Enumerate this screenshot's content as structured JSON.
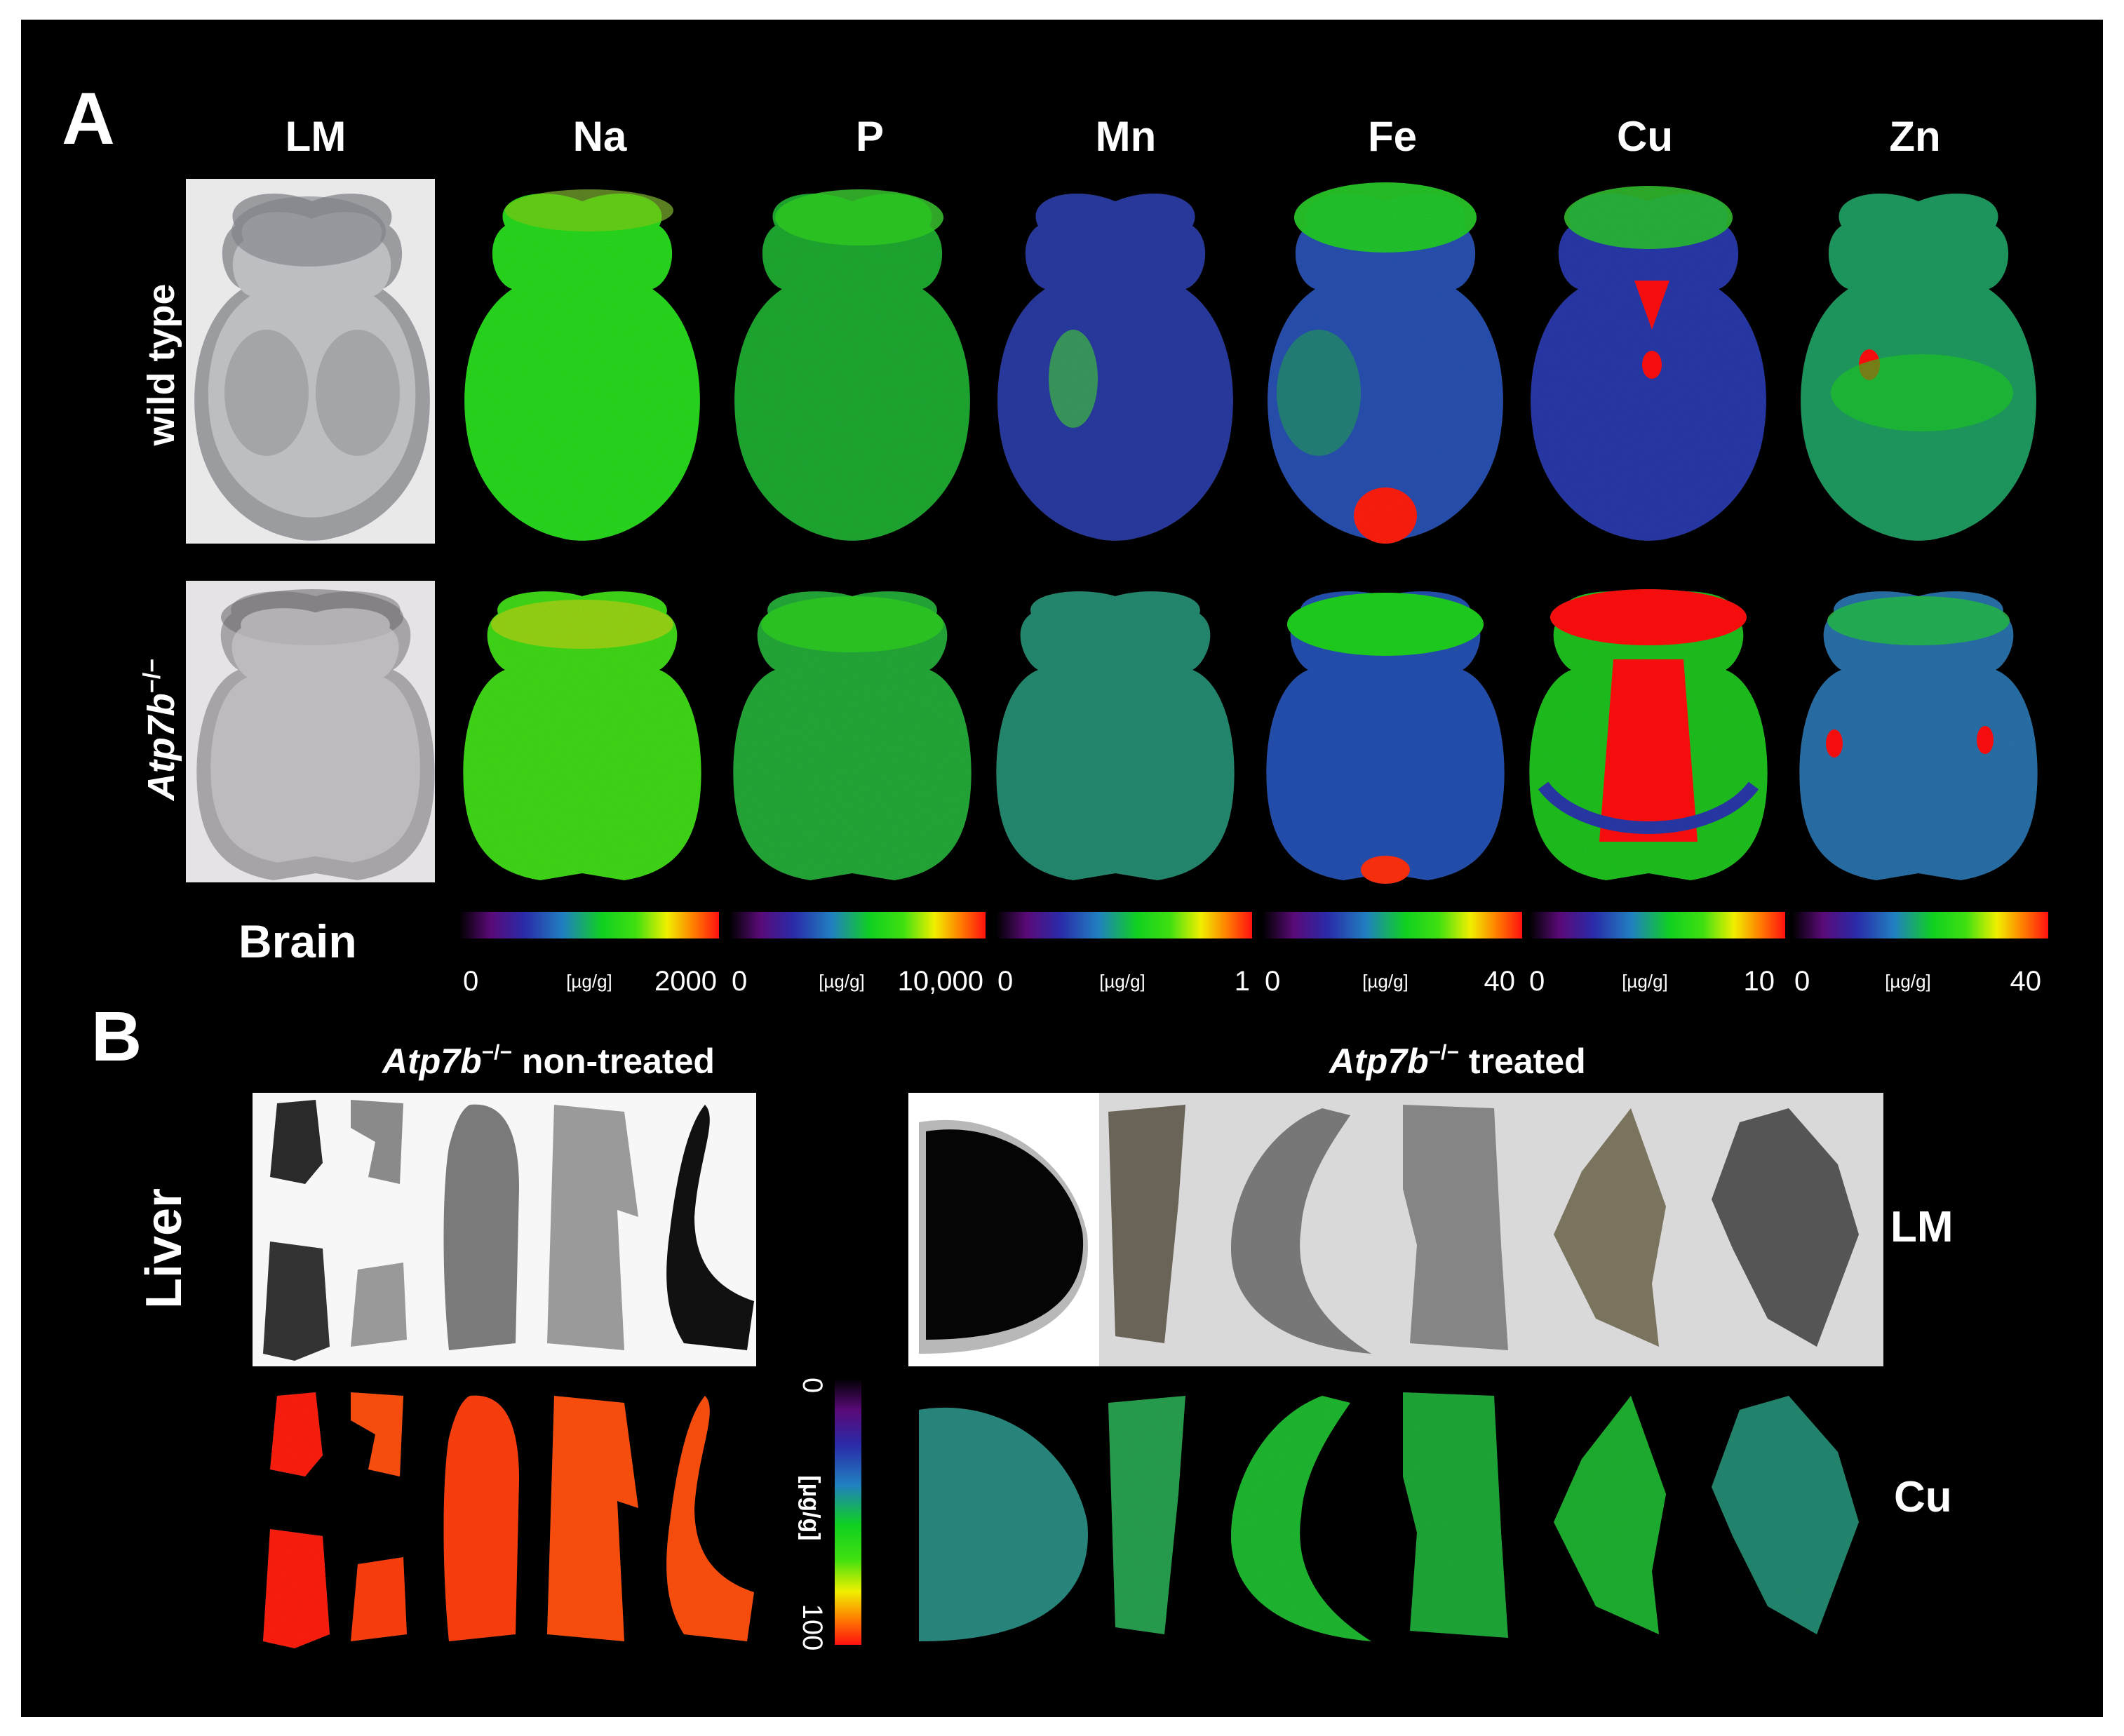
{
  "panelA": {
    "letter": "A",
    "columns": [
      "LM",
      "Na",
      "P",
      "Mn",
      "Fe",
      "Cu",
      "Zn"
    ],
    "rows": [
      {
        "label": "wild type"
      },
      {
        "label_main": "Atp7b",
        "label_sup": "−/−"
      }
    ],
    "tissue": "Brain",
    "colorbars": [
      {
        "element": "Na",
        "min": "0",
        "unit": "[µg/g]",
        "max": "2000"
      },
      {
        "element": "P",
        "min": "0",
        "unit": "[µg/g]",
        "max": "10,000"
      },
      {
        "element": "Mn",
        "min": "0",
        "unit": "[µg/g]",
        "max": "1"
      },
      {
        "element": "Fe",
        "min": "0",
        "unit": "[µg/g]",
        "max": "40"
      },
      {
        "element": "Cu",
        "min": "0",
        "unit": "[µg/g]",
        "max": "10"
      },
      {
        "element": "Zn",
        "min": "0",
        "unit": "[µg/g]",
        "max": "40"
      }
    ]
  },
  "panelB": {
    "letter": "B",
    "tissue": "Liver",
    "group_nontreated": {
      "main": "Atp7b",
      "sup": "−/−",
      "rest": " non-treated"
    },
    "group_treated": {
      "main": "Atp7b",
      "sup": "−/−",
      "rest": " treated"
    },
    "row_labels": [
      "LM",
      "Cu"
    ],
    "colorbar": {
      "min": "0",
      "unit": "[µg/g]",
      "max": "100"
    }
  },
  "colors": {
    "background": "#000000",
    "frame": "#ffffff",
    "colormap": [
      "#000000",
      "#5a0a78",
      "#2a2aa8",
      "#2080c0",
      "#10d020",
      "#40e010",
      "#f0f000",
      "#ff8000",
      "#ff1010"
    ]
  }
}
